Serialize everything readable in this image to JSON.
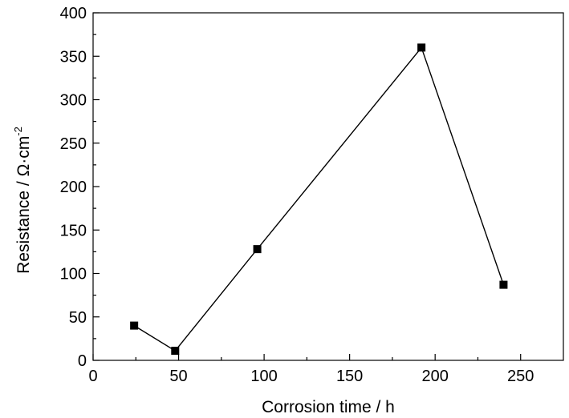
{
  "chart_data": {
    "type": "line",
    "xlabel": "Corrosion time / h",
    "ylabel": {
      "main": "Resistance  / Ω·cm",
      "exponent": "-2"
    },
    "xlim": [
      0,
      275
    ],
    "ylim": [
      0,
      400
    ],
    "x_ticks": [
      0,
      50,
      100,
      150,
      200,
      250
    ],
    "y_ticks": [
      0,
      50,
      100,
      150,
      200,
      250,
      300,
      350,
      400
    ],
    "grid": false,
    "series": [
      {
        "marker": "square",
        "color": "#000000",
        "points": [
          {
            "x": 24,
            "y": 40
          },
          {
            "x": 48,
            "y": 11
          },
          {
            "x": 96,
            "y": 128
          },
          {
            "x": 192,
            "y": 360
          },
          {
            "x": 240,
            "y": 87
          }
        ]
      }
    ]
  }
}
